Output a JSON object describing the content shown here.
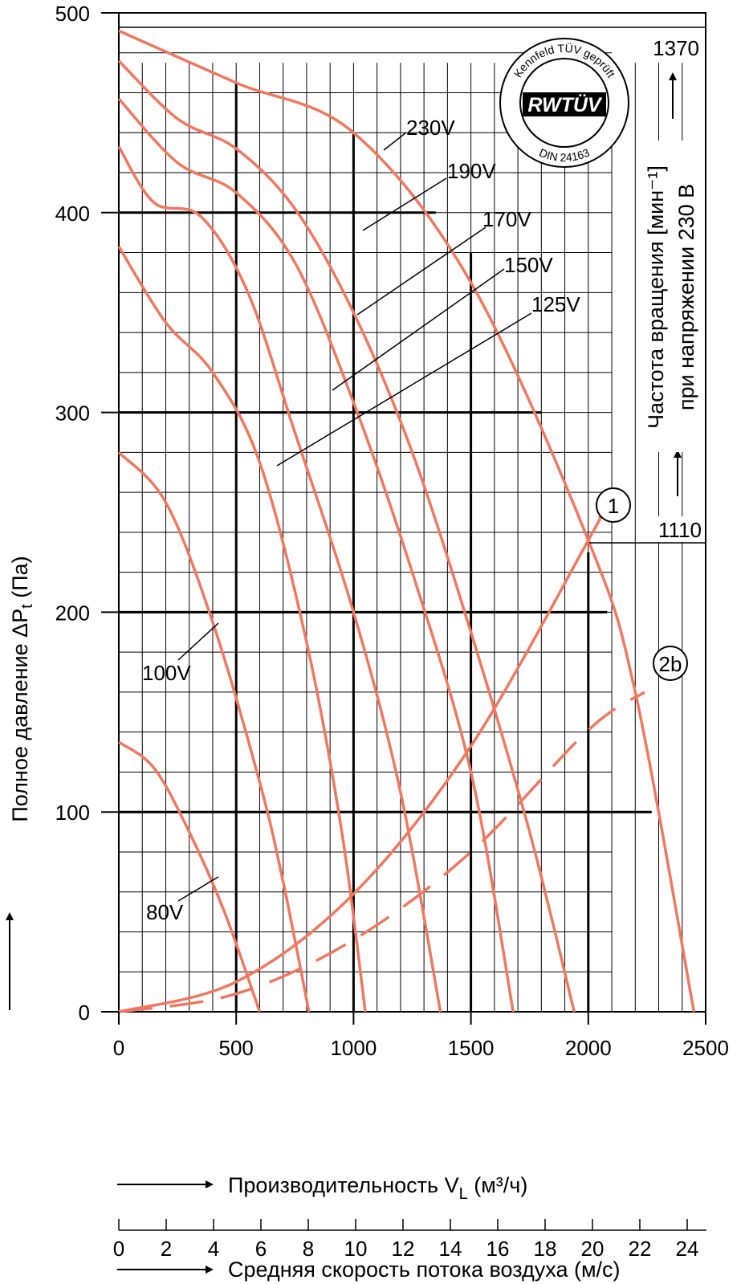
{
  "colors": {
    "curve": "#F07860",
    "grid": "#000000",
    "background": "#ffffff"
  },
  "chart_data": {
    "type": "line",
    "x_unit": "м³/ч",
    "y_unit": "Па",
    "xlim": [
      0,
      2500
    ],
    "ylim": [
      0,
      500
    ],
    "x_ticks": [
      "0",
      "500",
      "1000",
      "1500",
      "2000",
      "2500"
    ],
    "y_ticks": [
      "0",
      "100",
      "200",
      "300",
      "400",
      "500"
    ],
    "grid": true,
    "y_axis_label": "Полное давление ΔP",
    "y_axis_label_sub": "t",
    "y_axis_label_unit": "(Па)",
    "x_axis_label": "Производительность V",
    "x_axis_label_sub": "L",
    "x_axis_label_unit": "(м³/ч)",
    "velocity_axis": {
      "ticks": [
        "0",
        "2",
        "4",
        "6",
        "8",
        "10",
        "12",
        "14",
        "16",
        "18",
        "20",
        "22",
        "24"
      ],
      "label": "Средняя скорость потока воздуха (м/с)"
    },
    "right_axis": {
      "label_line1": "Частота вращения [мин⁻¹]",
      "label_line2": "при напряжении 230 В",
      "values": [
        "1370",
        "1110"
      ]
    },
    "stamp": {
      "top_text": "Kennfeld TÜV geprüft",
      "center_text": "RWTÜV",
      "bottom_text": "DIN 24163"
    },
    "series": [
      {
        "name": "230V",
        "x": [
          0,
          500,
          1000,
          1500,
          2000,
          2200,
          2450
        ],
        "y": [
          491,
          465,
          440,
          365,
          236,
          160,
          0
        ]
      },
      {
        "name": "190V",
        "x": [
          0,
          250,
          500,
          750,
          1000,
          1250,
          1500,
          1750,
          1940
        ],
        "y": [
          476,
          447,
          432,
          402,
          350,
          280,
          190,
          90,
          0
        ]
      },
      {
        "name": "170V",
        "x": [
          0,
          250,
          500,
          750,
          1000,
          1250,
          1500,
          1680
        ],
        "y": [
          457,
          425,
          410,
          375,
          305,
          220,
          120,
          0
        ]
      },
      {
        "name": "150V",
        "x": [
          0,
          150,
          350,
          550,
          750,
          1000,
          1200,
          1370
        ],
        "y": [
          433,
          405,
          398,
          360,
          290,
          200,
          110,
          0
        ]
      },
      {
        "name": "125V",
        "x": [
          0,
          200,
          400,
          600,
          800,
          950,
          1050
        ],
        "y": [
          383,
          345,
          320,
          275,
          185,
          90,
          0
        ]
      },
      {
        "name": "100V",
        "x": [
          0,
          200,
          400,
          600,
          700,
          810
        ],
        "y": [
          280,
          255,
          195,
          115,
          65,
          0
        ]
      },
      {
        "name": "80V",
        "x": [
          0,
          150,
          300,
          450,
          600
        ],
        "y": [
          135,
          122,
          90,
          50,
          0
        ]
      },
      {
        "name": "1",
        "x": [
          0,
          500,
          1000,
          1500,
          2000,
          2050
        ],
        "y": [
          0,
          15,
          59,
          133,
          236,
          248
        ]
      },
      {
        "name": "2b",
        "x": [
          0,
          500,
          1000,
          1500,
          2000,
          2240
        ],
        "y": [
          0,
          9,
          36,
          80,
          141,
          160
        ]
      }
    ],
    "curve_labels": [
      "230V",
      "190V",
      "170V",
      "150V",
      "125V",
      "100V",
      "80V"
    ],
    "marker_labels": [
      "1",
      "2b"
    ]
  }
}
